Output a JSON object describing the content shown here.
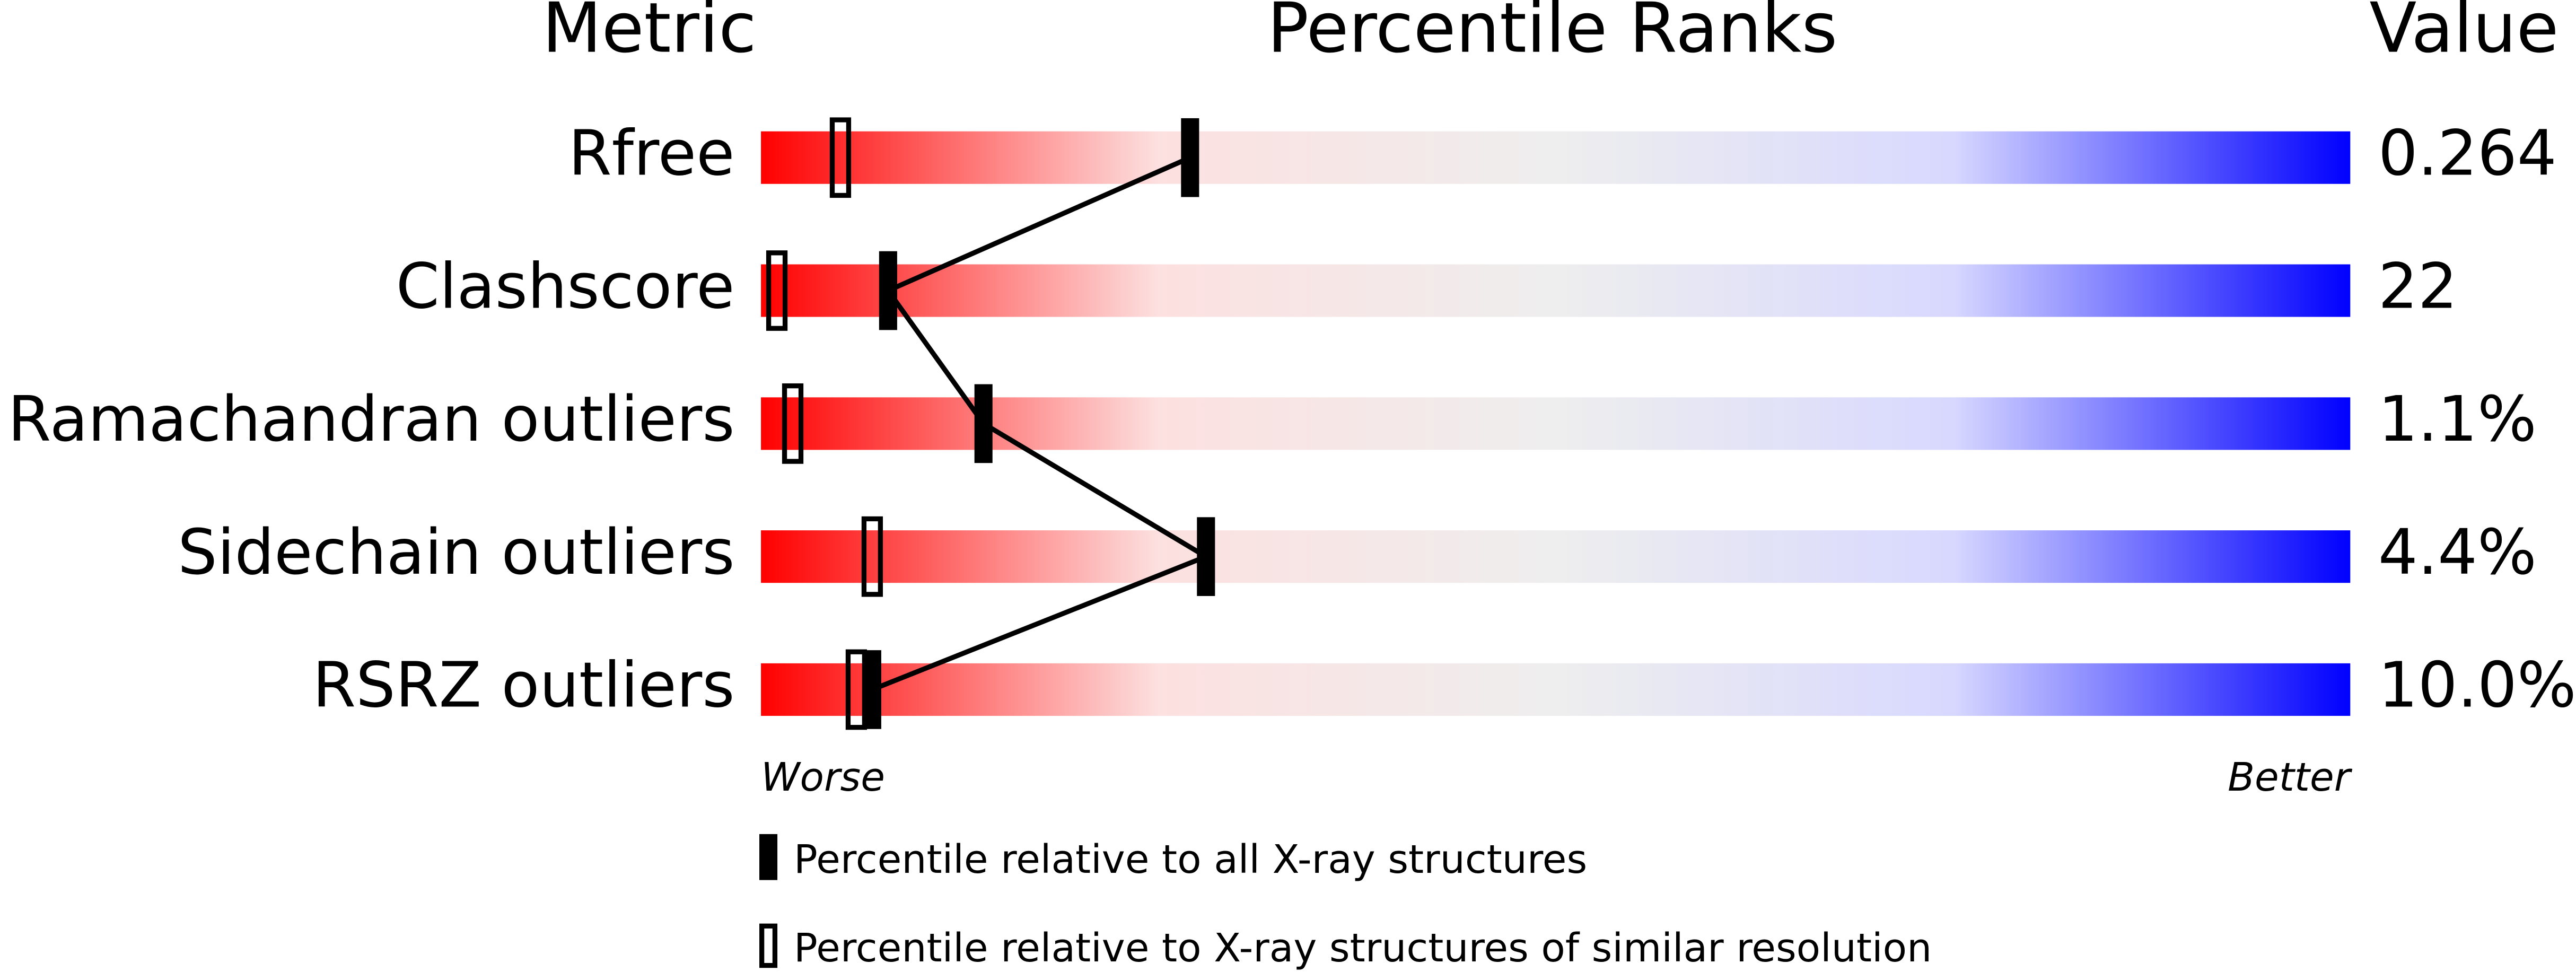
{
  "chart_data": {
    "type": "percentile-slider",
    "headers": [
      "Metric",
      "Percentile Ranks",
      "Value"
    ],
    "categories": [
      "Rfree",
      "Clashscore",
      "Ramachandran outliers",
      "Sidechain outliers",
      "RSRZ outliers"
    ],
    "metric_values": [
      "0.264",
      "22",
      "1.1%",
      "4.4%",
      "10.0%"
    ],
    "xlim": [
      0,
      100
    ],
    "x_label_low": "Worse",
    "x_label_high": "Better",
    "series": [
      {
        "name": "Percentile relative to all X-ray structures",
        "color": "#000000",
        "marker": "filled",
        "values": [
          27,
          8,
          14,
          28,
          7
        ]
      },
      {
        "name": "Percentile relative to X-ray structures of similar resolution",
        "color": "#000000",
        "marker": "open",
        "values": [
          5,
          1,
          2,
          7,
          6
        ]
      }
    ],
    "gradient": [
      "#ff0000",
      "#fde0e0",
      "#eeeeee",
      "#d8d8ff",
      "#0000ff"
    ]
  }
}
